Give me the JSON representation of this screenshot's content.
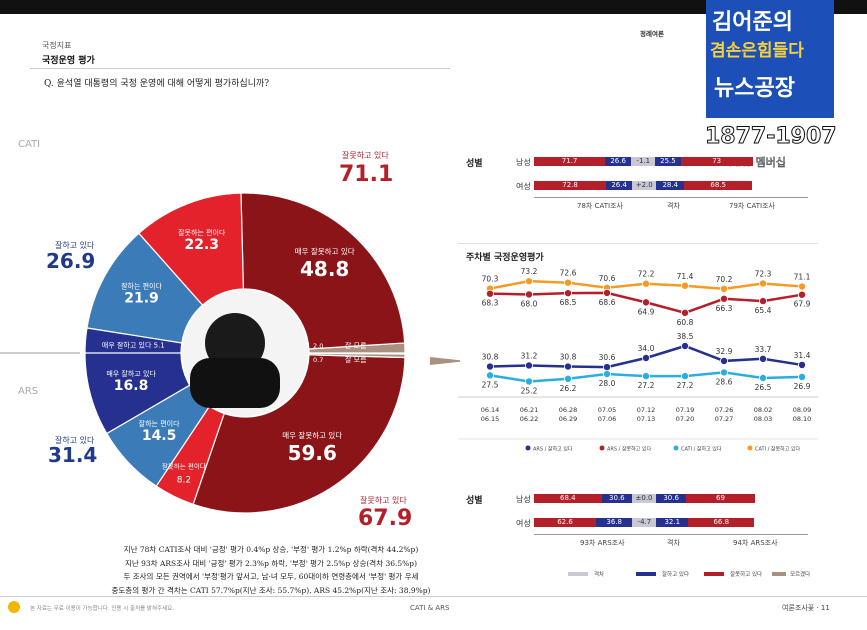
{
  "header": {
    "category": "국정지표",
    "title": "국정운영 평가",
    "question": "Q. 윤석열 대통령의 국정 운영에 대해 어떻게 평가하십니까?",
    "top_right_tag": "정례여론"
  },
  "logo": {
    "line1": "김어준의",
    "line2": "겸손은힘들다",
    "line3": "뉴스공장",
    "years": "1877-1907",
    "member": "ARS 멤버십"
  },
  "colors": {
    "dark_red": "#8b1418",
    "red": "#e3222c",
    "blue": "#3a7bb8",
    "navy": "#25308f",
    "tan": "#a99080",
    "orange": "#f59a23",
    "cyan": "#2aaee0"
  },
  "donut": {
    "cati_label": "CATI",
    "ars_label": "ARS",
    "cati_positive_label": "잘하고 있다",
    "cati_positive_value": "26.9",
    "cati_negative_label": "잘못하고 있다",
    "cati_negative_value": "71.1",
    "ars_positive_label": "잘하고 있다",
    "ars_positive_value": "31.4",
    "ars_negative_label": "잘못하고 있다",
    "ars_negative_value": "67.9"
  },
  "chart_data": [
    {
      "type": "pie",
      "title": "국정운영 평가 (CATI / ARS)",
      "series": [
        {
          "name": "CATI",
          "slices": [
            {
              "label": "매우 잘못하고 있다",
              "value": 48.8
            },
            {
              "label": "잘못하는 편이다",
              "value": 22.3
            },
            {
              "label": "잘하는 편이다",
              "value": 21.9
            },
            {
              "label": "매우 잘하고 있다",
              "value": 5.1
            },
            {
              "label": "잘 모름",
              "value": 2.0
            }
          ]
        },
        {
          "name": "ARS",
          "slices": [
            {
              "label": "매우 잘하고 있다",
              "value": 16.8
            },
            {
              "label": "잘하는 편이다",
              "value": 14.5
            },
            {
              "label": "잘못하는 편이다",
              "value": 8.2
            },
            {
              "label": "매우 잘못하고 있다",
              "value": 59.6
            },
            {
              "label": "잘 모름",
              "value": 0.7
            }
          ]
        }
      ],
      "small_label": "잘 모름"
    },
    {
      "type": "bar",
      "title": "성별 (CATI)",
      "categories": [
        "남성",
        "여성"
      ],
      "series": [
        {
          "name": "78차 CATI조사 부정",
          "values": [
            71.7,
            72.8
          ]
        },
        {
          "name": "78차 CATI조사 긍정",
          "values": [
            26.6,
            26.4
          ]
        },
        {
          "name": "격차",
          "values": [
            "-1.1",
            "+2.0"
          ]
        },
        {
          "name": "79차 CATI조사 긍정",
          "values": [
            25.5,
            28.4
          ]
        },
        {
          "name": "79차 CATI조사 부정",
          "values": [
            73.0,
            68.5
          ]
        }
      ],
      "top_labels": [
        "71.7",
        "26.6",
        "-1.1",
        "25.5",
        "73"
      ],
      "under_labels": [
        "78차 CATI조사",
        "격차",
        "79차 CATI조사"
      ],
      "row_title": "성별"
    },
    {
      "type": "line",
      "title": "주차별 국정운영평가",
      "x": [
        "06.14\n06.15",
        "06.21\n06.22",
        "06.28\n06.29",
        "07.05\n07.06",
        "07.12\n07.13",
        "07.19\n07.20",
        "07.26\n07.27",
        "08.02\n08.03",
        "08.09\n08.10"
      ],
      "x_top": [
        "06.14",
        "06.21",
        "06.28",
        "07.05",
        "07.12",
        "07.19",
        "07.26",
        "08.02",
        "08.09"
      ],
      "x_bottom": [
        "06.15",
        "06.22",
        "06.29",
        "07.06",
        "07.13",
        "07.20",
        "07.27",
        "08.03",
        "08.10"
      ],
      "series": [
        {
          "name": "CATI / 잘못하고 있다",
          "values": [
            70.3,
            73.2,
            72.6,
            70.6,
            72.2,
            71.4,
            70.2,
            72.3,
            71.1
          ]
        },
        {
          "name": "ARS / 잘못하고 있다",
          "values": [
            68.3,
            68.0,
            68.5,
            68.6,
            64.9,
            60.8,
            66.3,
            65.4,
            67.9
          ]
        },
        {
          "name": "ARS / 잘하고 있다",
          "values": [
            30.8,
            31.2,
            30.8,
            30.6,
            34.0,
            38.5,
            32.9,
            33.7,
            31.4
          ]
        },
        {
          "name": "CATI / 잘하고 있다",
          "values": [
            27.5,
            25.2,
            26.2,
            28.0,
            27.2,
            27.2,
            28.6,
            26.5,
            26.9
          ]
        }
      ],
      "legend": [
        "ARS / 잘하고 있다",
        "ARS / 잘못하고 있다",
        "CATI / 잘하고 있다",
        "CATI / 잘못하고 있다"
      ]
    },
    {
      "type": "bar",
      "title": "성별 (ARS)",
      "categories": [
        "남성",
        "여성"
      ],
      "series": [
        {
          "name": "93차 ARS조사 부정",
          "values": [
            68.4,
            62.6
          ]
        },
        {
          "name": "93차 ARS조사 긍정",
          "values": [
            30.6,
            36.8
          ]
        },
        {
          "name": "격차",
          "values": [
            "±0.0",
            "-4.7"
          ]
        },
        {
          "name": "94차 ARS조사 긍정",
          "values": [
            30.6,
            32.1
          ]
        },
        {
          "name": "94차 ARS조사 부정",
          "values": [
            69.0,
            66.8
          ]
        }
      ],
      "under_labels": [
        "93차 ARS조사",
        "격차",
        "94차 ARS조사"
      ],
      "row_title": "성별"
    }
  ],
  "bottom_legend": [
    "격차",
    "잘하고 있다",
    "잘못하고 있다",
    "모르겠다"
  ],
  "notes": [
    "지난 78차 CATI조사 대비 '긍정' 평가 0.4%p 상승, '부정' 평가 1.2%p 하락(격차 44.2%p)",
    "지난 93차 ARS조사 대비 '긍정' 평가 2.3%p 하락, '부정' 평가 2.5%p 상승(격차 36.5%p)",
    "두 조사의 모든 권역에서 '부정'평가 앞서고, 남·녀 모두, 60대이하 연령층에서 '부정' 평가 우세",
    "중도층의 평가 간 격차는 CATI 57.7%p(지난 조사: 55.7%p), ARS 45.2%p(지난 조사: 38.9%p)"
  ],
  "footer": {
    "left": "본 자료는 무료 이용이 가능합니다. 인용 시 출처를 밝혀주세요.",
    "center": "CATI & ARS",
    "right": "여론조사꽃 · 11"
  }
}
